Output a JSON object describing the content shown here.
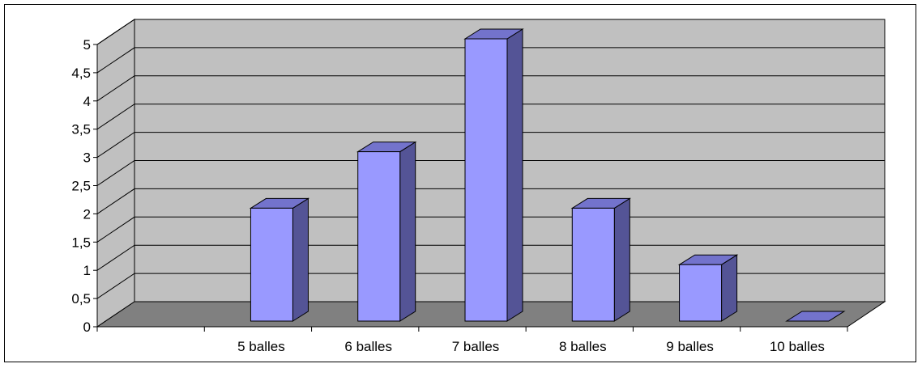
{
  "chart_data": {
    "type": "bar",
    "style": "3d",
    "categories": [
      "",
      "5 balles",
      "6 balles",
      "7 balles",
      "8 balles",
      "9 balles",
      "10 balles"
    ],
    "values": [
      0,
      2,
      3,
      5,
      2,
      1,
      0
    ],
    "yticks": [
      "0",
      "0,5",
      "1",
      "1,5",
      "2",
      "2,5",
      "3",
      "3,5",
      "4",
      "4,5",
      "5"
    ],
    "ylim": [
      0,
      5
    ],
    "ystep": 0.5,
    "title": "",
    "xlabel": "",
    "ylabel": "",
    "grid": true,
    "legend": "none",
    "colors": {
      "bar_front": "#9999ff",
      "bar_side": "#545496",
      "bar_top": "#7373cc",
      "wall": "#c0c0c0",
      "floor": "#808080",
      "grid": "#000000"
    }
  }
}
